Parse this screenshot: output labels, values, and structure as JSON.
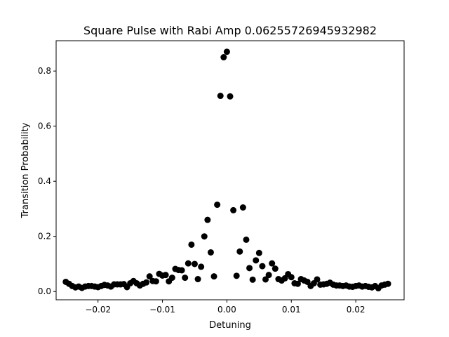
{
  "chart_data": {
    "type": "scatter",
    "title": "Square Pulse with Rabi Amp 0.06255726945932982",
    "xlabel": "Detuning",
    "ylabel": "Transition Probability",
    "xlim": [
      -0.0265,
      0.0275
    ],
    "ylim": [
      -0.03,
      0.91
    ],
    "x_ticks": [
      -0.02,
      -0.01,
      0.0,
      0.01,
      0.02
    ],
    "x_tick_labels": [
      "−0.02",
      "−0.01",
      "0.00",
      "0.01",
      "0.02"
    ],
    "y_ticks": [
      0.0,
      0.2,
      0.4,
      0.6,
      0.8
    ],
    "y_tick_labels": [
      "0.0",
      "0.2",
      "0.4",
      "0.6",
      "0.8"
    ],
    "grid": false,
    "marker_color": "#000000",
    "series": [
      {
        "x": [
          -0.025,
          -0.0245,
          -0.024,
          -0.0235,
          -0.023,
          -0.0225,
          -0.022,
          -0.0215,
          -0.021,
          -0.0205,
          -0.02,
          -0.0195,
          -0.019,
          -0.0185,
          -0.018,
          -0.0175,
          -0.017,
          -0.0165,
          -0.016,
          -0.0155,
          -0.015,
          -0.0145,
          -0.014,
          -0.0135,
          -0.013,
          -0.0125,
          -0.012,
          -0.0115,
          -0.011,
          -0.0105,
          -0.01,
          -0.0095,
          -0.009,
          -0.0085,
          -0.008,
          -0.0075,
          -0.007,
          -0.0065,
          -0.006,
          -0.0055,
          -0.005,
          -0.0045,
          -0.004,
          -0.0035,
          -0.003,
          -0.0025,
          -0.002,
          -0.0015,
          -0.001,
          -0.0005,
          0.0,
          0.0005,
          0.001,
          0.0015,
          0.002,
          0.0025,
          0.003,
          0.0035,
          0.004,
          0.0045,
          0.005,
          0.0055,
          0.006,
          0.0065,
          0.007,
          0.0075,
          0.008,
          0.0085,
          0.009,
          0.0095,
          0.01,
          0.0105,
          0.011,
          0.0115,
          0.012,
          0.0125,
          0.013,
          0.0135,
          0.014,
          0.0145,
          0.015,
          0.0155,
          0.016,
          0.0165,
          0.017,
          0.0175,
          0.018,
          0.0185,
          0.019,
          0.0195,
          0.02,
          0.0205,
          0.021,
          0.0215,
          0.022,
          0.0225,
          0.023,
          0.0235,
          0.024,
          0.0245,
          0.025
        ],
        "y": [
          0.035,
          0.028,
          0.02,
          0.015,
          0.018,
          0.013,
          0.018,
          0.02,
          0.02,
          0.018,
          0.016,
          0.02,
          0.024,
          0.022,
          0.018,
          0.026,
          0.026,
          0.026,
          0.027,
          0.016,
          0.03,
          0.038,
          0.03,
          0.022,
          0.028,
          0.033,
          0.055,
          0.038,
          0.037,
          0.064,
          0.058,
          0.06,
          0.037,
          0.05,
          0.082,
          0.078,
          0.077,
          0.05,
          0.102,
          0.17,
          0.1,
          0.045,
          0.09,
          0.2,
          0.26,
          0.142,
          0.055,
          0.315,
          0.71,
          0.85,
          0.87,
          0.708,
          0.295,
          0.057,
          0.145,
          0.305,
          0.188,
          0.085,
          0.043,
          0.113,
          0.14,
          0.092,
          0.044,
          0.06,
          0.102,
          0.083,
          0.045,
          0.04,
          0.048,
          0.063,
          0.052,
          0.03,
          0.028,
          0.045,
          0.04,
          0.035,
          0.02,
          0.03,
          0.044,
          0.025,
          0.026,
          0.028,
          0.032,
          0.025,
          0.022,
          0.022,
          0.02,
          0.022,
          0.018,
          0.017,
          0.02,
          0.022,
          0.018,
          0.02,
          0.017,
          0.015,
          0.02,
          0.012,
          0.022,
          0.025,
          0.028
        ]
      }
    ]
  }
}
